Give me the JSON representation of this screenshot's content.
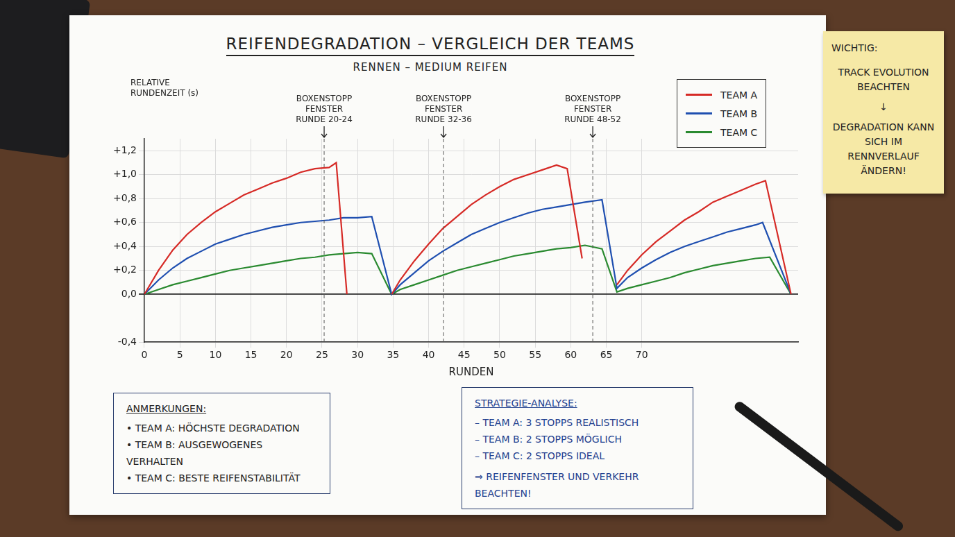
{
  "chart_data": {
    "type": "line",
    "title": "REIFENDEGRADATION – VERGLEICH DER TEAMS",
    "subtitle": "RENNEN – MEDIUM REIFEN",
    "x_label": "RUNDEN",
    "y_label": "RELATIVE RUNDENZEIT (s)",
    "xlim": [
      0,
      92
    ],
    "xticks": [
      0,
      5,
      10,
      15,
      20,
      25,
      30,
      35,
      40,
      45,
      50,
      55,
      60,
      65,
      70
    ],
    "ylim": [
      -0.4,
      1.3
    ],
    "yticks": [
      {
        "value": -0.4,
        "label": "-0,4"
      },
      {
        "value": 0,
        "label": "0,0"
      },
      {
        "value": 0.2,
        "label": "+0,2"
      },
      {
        "value": 0.4,
        "label": "+0,4"
      },
      {
        "value": 0.6,
        "label": "+0,6"
      },
      {
        "value": 0.8,
        "label": "+0,8"
      },
      {
        "value": 1.0,
        "label": "+1,0"
      },
      {
        "value": 1.2,
        "label": "+1,2"
      }
    ],
    "grid": true,
    "legend": "top-right",
    "series": [
      {
        "name": "TEAM A",
        "color": "#d62a26",
        "x": [
          0,
          2,
          4,
          6,
          8,
          10,
          12,
          14,
          16,
          18,
          20,
          22,
          24,
          26,
          27,
          28.5,
          31,
          34.8,
          36,
          38,
          40,
          42,
          44,
          46,
          48,
          50,
          52,
          54,
          56,
          58,
          59.5,
          61.6,
          64,
          66.5,
          68,
          70,
          72,
          74,
          76,
          78,
          80,
          82,
          84,
          86,
          87.4,
          91
        ],
        "values": [
          0,
          0.2,
          0.37,
          0.5,
          0.6,
          0.69,
          0.76,
          0.83,
          0.88,
          0.93,
          0.97,
          1.02,
          1.05,
          1.06,
          1.1,
          0,
          null,
          0,
          0.12,
          0.28,
          0.42,
          0.55,
          0.65,
          0.75,
          0.83,
          0.9,
          0.96,
          1.0,
          1.04,
          1.08,
          1.05,
          0.3,
          null,
          0.08,
          0.2,
          0.33,
          0.44,
          0.53,
          0.62,
          0.69,
          0.77,
          0.82,
          0.87,
          0.92,
          0.95,
          0.0
        ]
      },
      {
        "name": "TEAM B",
        "color": "#1f4fb0",
        "x": [
          0,
          2,
          4,
          6,
          8,
          10,
          12,
          14,
          16,
          18,
          20,
          22,
          24,
          26,
          28,
          30,
          32,
          34.8,
          36,
          38,
          40,
          42,
          44,
          46,
          48,
          50,
          52,
          54,
          56,
          58,
          60,
          62,
          64.4,
          66.5,
          68,
          70,
          72,
          74,
          76,
          78,
          80,
          82,
          84,
          86,
          87,
          91
        ],
        "values": [
          0,
          0.12,
          0.22,
          0.3,
          0.36,
          0.42,
          0.46,
          0.5,
          0.53,
          0.56,
          0.58,
          0.6,
          0.61,
          0.62,
          0.64,
          0.64,
          0.65,
          0,
          0.08,
          0.18,
          0.28,
          0.36,
          0.43,
          0.5,
          0.55,
          0.6,
          0.64,
          0.68,
          0.71,
          0.73,
          0.75,
          0.77,
          0.79,
          0.05,
          0.14,
          0.22,
          0.29,
          0.35,
          0.4,
          0.44,
          0.48,
          0.52,
          0.55,
          0.58,
          0.6,
          0.0
        ]
      },
      {
        "name": "TEAM C",
        "color": "#2a8a30",
        "x": [
          0,
          2,
          4,
          6,
          8,
          10,
          12,
          14,
          16,
          18,
          20,
          22,
          24,
          26,
          28,
          30,
          32,
          34.8,
          36,
          38,
          40,
          42,
          44,
          46,
          48,
          50,
          52,
          54,
          56,
          58,
          60,
          62,
          64.4,
          66.5,
          68,
          70,
          72,
          74,
          76,
          78,
          80,
          82,
          84,
          86,
          88,
          91
        ],
        "values": [
          0,
          0.04,
          0.08,
          0.11,
          0.14,
          0.17,
          0.2,
          0.22,
          0.24,
          0.26,
          0.28,
          0.3,
          0.31,
          0.33,
          0.34,
          0.35,
          0.34,
          0,
          0.04,
          0.08,
          0.12,
          0.16,
          0.2,
          0.23,
          0.26,
          0.29,
          0.32,
          0.34,
          0.36,
          0.38,
          0.39,
          0.41,
          0.38,
          0.02,
          0.05,
          0.08,
          0.11,
          0.14,
          0.18,
          0.21,
          0.24,
          0.26,
          0.28,
          0.3,
          0.31,
          0.0
        ]
      }
    ],
    "annotations": [
      {
        "x": 25.3,
        "text": [
          "BOXENSTOPP",
          "FENSTER",
          "RUNDE 20-24"
        ]
      },
      {
        "x": 42.1,
        "text": [
          "BOXENSTOPP",
          "FENSTER",
          "RUNDE 32-36"
        ]
      },
      {
        "x": 63.1,
        "text": [
          "BOXENSTOPP",
          "FENSTER",
          "RUNDE 48-52"
        ]
      }
    ],
    "notes": [
      {
        "title": "ANMERKUNGEN:",
        "items": [
          "• TEAM A: HÖCHSTE DEGRADATION",
          "• TEAM B: AUSGEWOGENES VERHALTEN",
          "• TEAM C: BESTE REIFENSTABILITÄT"
        ]
      },
      {
        "title": "STRATEGIE-ANALYSE:",
        "items": [
          "– TEAM A: 3 STOPPS REALISTISCH",
          "– TEAM B: 2 STOPPS MÖGLICH",
          "– TEAM C: 2 STOPPS IDEAL"
        ],
        "footer": "⇒ REIFENFENSTER UND VERKEHR BEACHTEN!"
      }
    ],
    "sticky_note": {
      "title": "WICHTIG:",
      "lines": [
        "TRACK EVOLUTION BEACHTEN",
        "↓",
        "DEGRADATION KANN SICH IM RENNVERLAUF ÄNDERN!"
      ]
    }
  }
}
